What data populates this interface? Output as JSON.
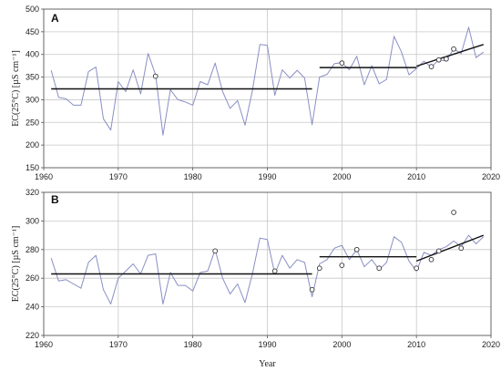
{
  "chart_data": [
    {
      "type": "line",
      "panel_label": "A",
      "ylabel": "EC(25°C)  [µS cm⁻¹]",
      "xlabel": "",
      "xlim": [
        1960,
        2020
      ],
      "ylim": [
        150,
        500
      ],
      "xticks": [
        1960,
        1970,
        1980,
        1990,
        2000,
        2010,
        2020
      ],
      "yticks": [
        150,
        200,
        250,
        300,
        350,
        400,
        450,
        500
      ],
      "grid": true,
      "series": [
        {
          "style": "line",
          "color": "#8a8fc4",
          "x": [
            1961,
            1962,
            1963,
            1964,
            1965,
            1966,
            1967,
            1968,
            1969,
            1970,
            1971,
            1972,
            1973,
            1974,
            1975,
            1976,
            1977,
            1978,
            1979,
            1980,
            1981,
            1982,
            1983,
            1984,
            1985,
            1986,
            1987,
            1988,
            1989,
            1990,
            1991,
            1992,
            1993,
            1994,
            1995,
            1996,
            1997,
            1998,
            1999,
            2000,
            2001,
            2002,
            2003,
            2004,
            2005,
            2006,
            2007,
            2008,
            2009,
            2010,
            2011,
            2012,
            2013,
            2014,
            2015,
            2016,
            2017,
            2018,
            2019
          ],
          "y": [
            365,
            305,
            302,
            288,
            288,
            362,
            372,
            258,
            233,
            340,
            318,
            366,
            313,
            402,
            355,
            222,
            322,
            300,
            295,
            288,
            340,
            333,
            381,
            318,
            281,
            298,
            244,
            320,
            422,
            420,
            310,
            366,
            348,
            365,
            348,
            245,
            350,
            356,
            380,
            382,
            366,
            396,
            333,
            375,
            335,
            345,
            440,
            405,
            355,
            369,
            385,
            372,
            388,
            386,
            412,
            402,
            460,
            393,
            405
          ]
        },
        {
          "style": "markers",
          "x": [
            1975,
            2000,
            2012,
            2013,
            2014,
            2015
          ],
          "y": [
            352,
            381,
            373,
            388,
            390,
            412
          ]
        },
        {
          "style": "trend",
          "segments": [
            {
              "x": [
                1961,
                1996
              ],
              "y": [
                324,
                324
              ]
            },
            {
              "x": [
                1997,
                2010
              ],
              "y": [
                371,
                371
              ]
            },
            {
              "x": [
                2010,
                2019
              ],
              "y": [
                374,
                422
              ]
            }
          ]
        }
      ]
    },
    {
      "type": "line",
      "panel_label": "B",
      "ylabel": "EC(25°C)  [µS cm⁻¹]",
      "xlabel": "Year",
      "xlim": [
        1960,
        2020
      ],
      "ylim": [
        220,
        320
      ],
      "xticks": [
        1960,
        1970,
        1980,
        1990,
        2000,
        2010,
        2020
      ],
      "yticks": [
        220,
        240,
        260,
        280,
        300,
        320
      ],
      "grid": true,
      "series": [
        {
          "style": "line",
          "color": "#8a8fc4",
          "x": [
            1961,
            1962,
            1963,
            1964,
            1965,
            1966,
            1967,
            1968,
            1969,
            1970,
            1971,
            1972,
            1973,
            1974,
            1975,
            1976,
            1977,
            1978,
            1979,
            1980,
            1981,
            1982,
            1983,
            1984,
            1985,
            1986,
            1987,
            1988,
            1989,
            1990,
            1991,
            1992,
            1993,
            1994,
            1995,
            1996,
            1997,
            1998,
            1999,
            2000,
            2001,
            2002,
            2003,
            2004,
            2005,
            2006,
            2007,
            2008,
            2009,
            2010,
            2011,
            2012,
            2013,
            2014,
            2015,
            2016,
            2017,
            2018,
            2019
          ],
          "y": [
            274,
            258,
            259,
            256,
            253,
            271,
            276,
            252,
            242,
            260,
            265,
            270,
            263,
            276,
            277,
            242,
            264,
            255,
            255,
            251,
            264,
            265,
            280,
            260,
            249,
            256,
            243,
            263,
            288,
            287,
            263,
            276,
            267,
            273,
            271,
            247,
            270,
            273,
            281,
            283,
            273,
            280,
            268,
            273,
            266,
            271,
            289,
            285,
            272,
            265,
            278,
            276,
            280,
            282,
            286,
            282,
            290,
            284,
            289
          ]
        },
        {
          "style": "markers",
          "x": [
            1983,
            1991,
            1996,
            1997,
            2000,
            2002,
            2005,
            2010,
            2012,
            2013,
            2015,
            2016
          ],
          "y": [
            279,
            265,
            252,
            267,
            269,
            280,
            267,
            267,
            273,
            279,
            306,
            281
          ]
        },
        {
          "style": "trend",
          "segments": [
            {
              "x": [
                1961,
                1996
              ],
              "y": [
                263,
                263
              ]
            },
            {
              "x": [
                1997,
                2010
              ],
              "y": [
                275,
                275
              ]
            },
            {
              "x": [
                2010,
                2019
              ],
              "y": [
                272,
                290
              ]
            }
          ]
        }
      ]
    }
  ]
}
